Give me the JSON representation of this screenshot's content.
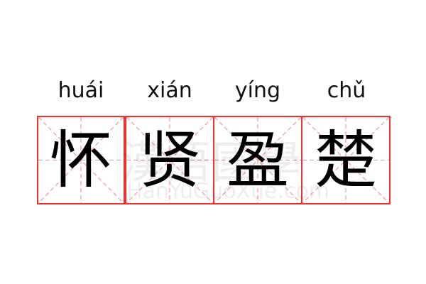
{
  "words": [
    {
      "pinyin": "huái",
      "hanzi": "怀"
    },
    {
      "pinyin": "xián",
      "hanzi": "贤"
    },
    {
      "pinyin": "yíng",
      "hanzi": "盈"
    },
    {
      "pinyin": "chǔ",
      "hanzi": "楚"
    }
  ],
  "watermark": {
    "chinese": "漢語國學",
    "latin": "HanYuGuoXue.com"
  },
  "colors": {
    "grid_border": "#f03030",
    "guide_lines": "#f5a0a0",
    "text": "#000000"
  }
}
